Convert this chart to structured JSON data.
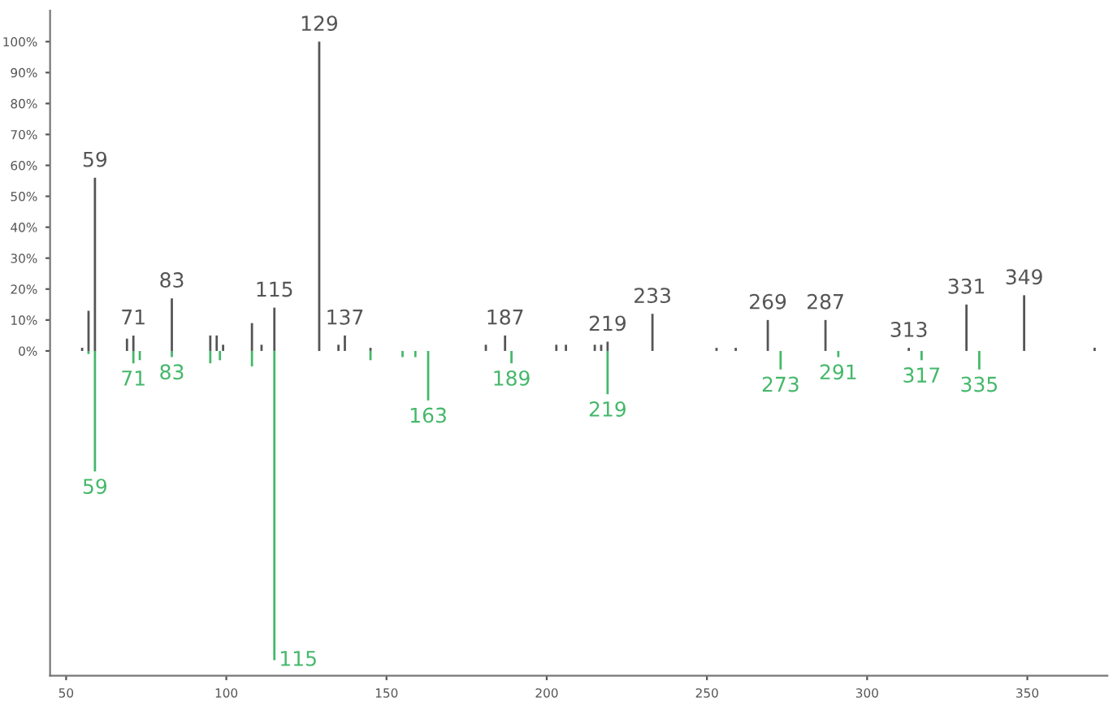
{
  "chart_data": {
    "type": "bar",
    "xlim": [
      45,
      375
    ],
    "xticks": [
      50,
      100,
      150,
      200,
      250,
      300,
      350
    ],
    "ylim": [
      -105,
      110
    ],
    "yticks": [
      {
        "value": 0,
        "label": "0%"
      },
      {
        "value": 10,
        "label": "10%"
      },
      {
        "value": 20,
        "label": "20%"
      },
      {
        "value": 30,
        "label": "30%"
      },
      {
        "value": 40,
        "label": "40%"
      },
      {
        "value": 50,
        "label": "50%"
      },
      {
        "value": 60,
        "label": "60%"
      },
      {
        "value": 70,
        "label": "70%"
      },
      {
        "value": 80,
        "label": "80%"
      },
      {
        "value": 90,
        "label": "90%"
      },
      {
        "value": 100,
        "label": "100%"
      }
    ],
    "grid": false,
    "legend": false,
    "series": [
      {
        "color": "#555555",
        "x": [
          55,
          57,
          59,
          69,
          71,
          83,
          95,
          97,
          99,
          108,
          111,
          115,
          129,
          135,
          137,
          145,
          181,
          187,
          203,
          206,
          215,
          217,
          219,
          233,
          253,
          259,
          269,
          287,
          313,
          331,
          349,
          371
        ],
        "values": [
          1,
          13,
          56,
          4,
          5,
          17,
          5,
          5,
          2,
          9,
          2,
          14,
          100,
          2,
          5,
          1,
          2,
          5,
          2,
          2,
          2,
          2,
          3,
          12,
          1,
          1,
          10,
          10,
          1,
          15,
          18,
          1
        ]
      },
      {
        "color": "#44b86a",
        "x": [
          57,
          59,
          71,
          73,
          83,
          95,
          98,
          108,
          115,
          145,
          155,
          159,
          163,
          189,
          219,
          273,
          291,
          317,
          335
        ],
        "values": [
          -1,
          -39,
          -4,
          -3,
          -2,
          -4,
          -3,
          -5,
          -100,
          -3,
          -2,
          -2,
          -16,
          -4,
          -14,
          -6,
          -2,
          -3,
          -6
        ]
      }
    ],
    "annotations": [
      {
        "text": "59",
        "x": 59,
        "y": 56
      },
      {
        "text": "71",
        "x": 71,
        "y": 5
      },
      {
        "text": "83",
        "x": 83,
        "y": 17
      },
      {
        "text": "115",
        "x": 115,
        "y": 14
      },
      {
        "text": "129",
        "x": 129,
        "y": 100
      },
      {
        "text": "137",
        "x": 137,
        "y": 5
      },
      {
        "text": "187",
        "x": 187,
        "y": 5
      },
      {
        "text": "219",
        "x": 219,
        "y": 3
      },
      {
        "text": "233",
        "x": 233,
        "y": 12
      },
      {
        "text": "269",
        "x": 269,
        "y": 10
      },
      {
        "text": "287",
        "x": 287,
        "y": 10
      },
      {
        "text": "313",
        "x": 313,
        "y": 1
      },
      {
        "text": "331",
        "x": 331,
        "y": 15
      },
      {
        "text": "349",
        "x": 349,
        "y": 18
      },
      {
        "text": "59",
        "x": 59,
        "y": -39
      },
      {
        "text": "71",
        "x": 71,
        "y": -4
      },
      {
        "text": "83",
        "x": 83,
        "y": -2
      },
      {
        "text": "115",
        "x": 115,
        "y": -100
      },
      {
        "text": "163",
        "x": 163,
        "y": -16
      },
      {
        "text": "189",
        "x": 189,
        "y": -4
      },
      {
        "text": "219",
        "x": 219,
        "y": -14
      },
      {
        "text": "273",
        "x": 273,
        "y": -6
      },
      {
        "text": "291",
        "x": 291,
        "y": -2
      },
      {
        "text": "317",
        "x": 317,
        "y": -3
      },
      {
        "text": "335",
        "x": 335,
        "y": -6
      }
    ]
  }
}
